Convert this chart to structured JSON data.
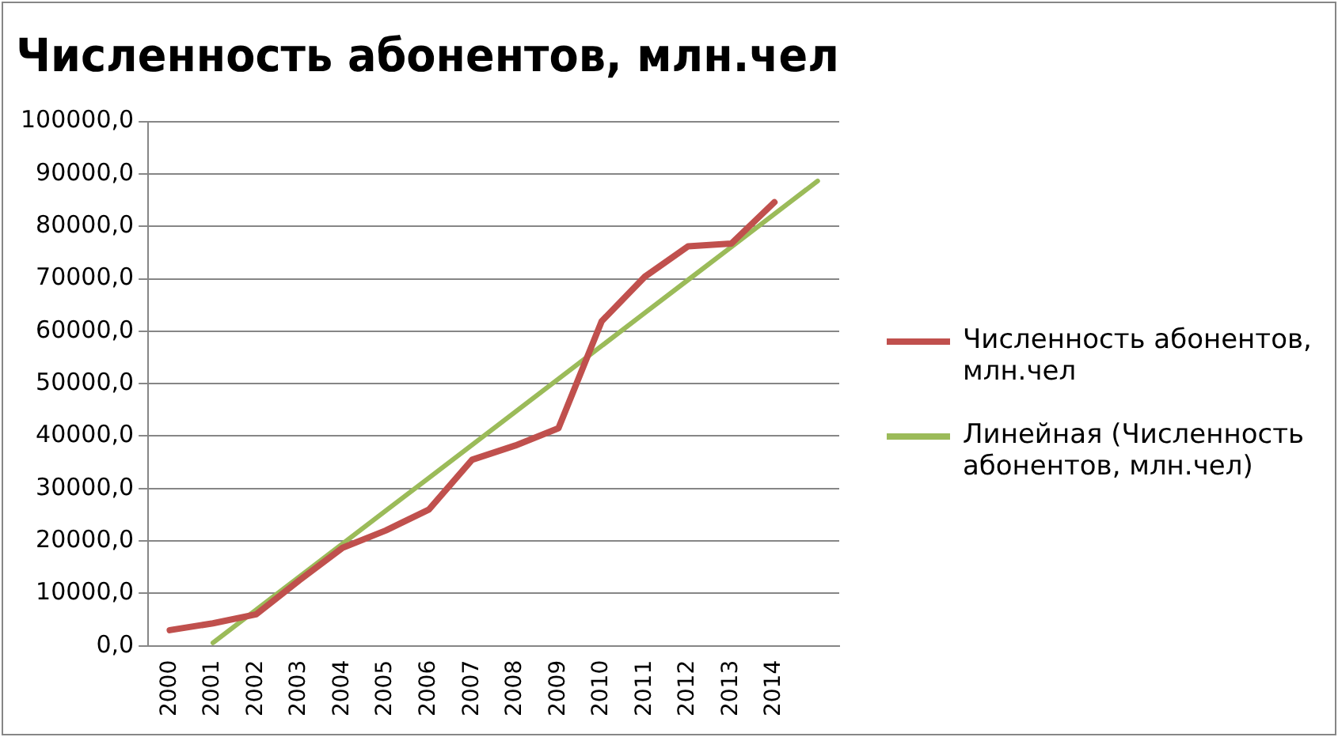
{
  "chart_data": {
    "type": "line",
    "title": "Численность абонентов, млн.чел",
    "categories": [
      "2000",
      "2001",
      "2002",
      "2003",
      "2004",
      "2005",
      "2006",
      "2007",
      "2008",
      "2009",
      "2010",
      "2011",
      "2012",
      "2013",
      "2014",
      null
    ],
    "series": [
      {
        "name": "Численность абонентов, млн.чел",
        "color": "#c0504d",
        "values": [
          3000,
          4300,
          6000,
          12500,
          18700,
          22000,
          26000,
          35500,
          38200,
          41500,
          61900,
          70400,
          76200,
          76700,
          84600,
          null
        ]
      },
      {
        "name": "Линейная (Численность абонентов, млн.чел)",
        "color": "#9bbb59",
        "values": [
          null,
          590,
          6880,
          13170,
          19460,
          25750,
          32040,
          38330,
          44620,
          50910,
          57200,
          63490,
          69780,
          76070,
          82360,
          88650
        ]
      }
    ],
    "ylim": [
      0,
      100000
    ],
    "yticks": [
      {
        "value": 0,
        "label": "0,0"
      },
      {
        "value": 10000,
        "label": "10000,0"
      },
      {
        "value": 20000,
        "label": "20000,0"
      },
      {
        "value": 30000,
        "label": "30000,0"
      },
      {
        "value": 40000,
        "label": "40000,0"
      },
      {
        "value": 50000,
        "label": "50000,0"
      },
      {
        "value": 60000,
        "label": "60000,0"
      },
      {
        "value": 70000,
        "label": "70000,0"
      },
      {
        "value": 80000,
        "label": "80000,0"
      },
      {
        "value": 90000,
        "label": "90000,0"
      },
      {
        "value": 100000,
        "label": "100000,0"
      }
    ],
    "grid": "y",
    "legend": "right",
    "marker": "none",
    "line_style": "solid"
  }
}
